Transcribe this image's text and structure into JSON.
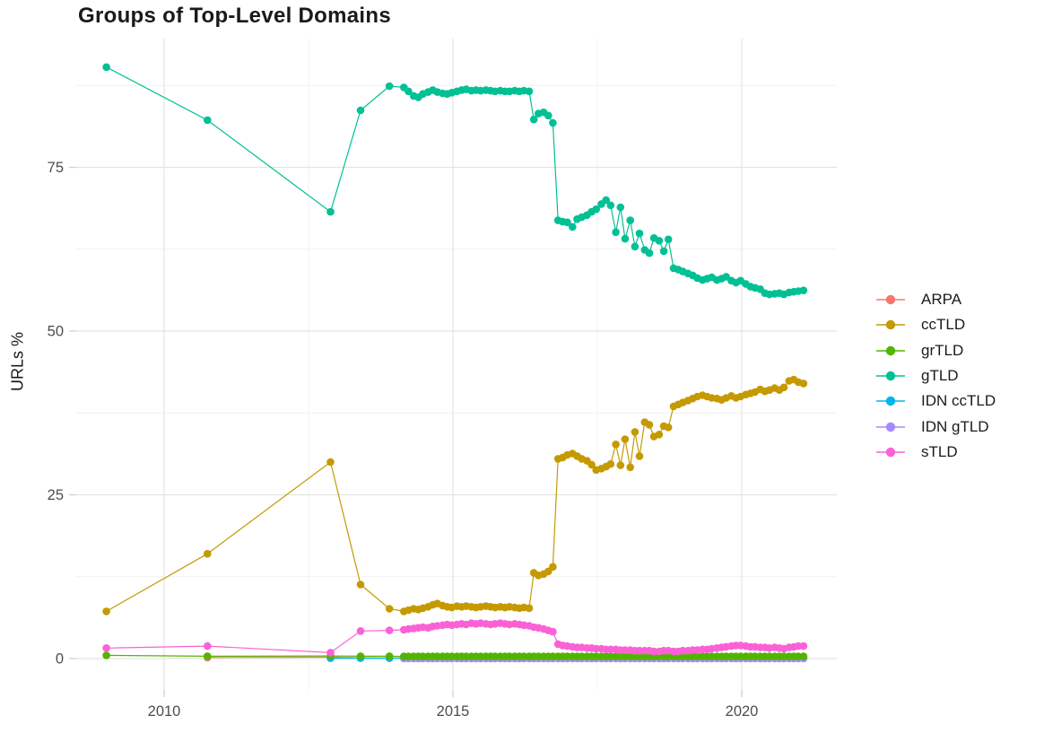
{
  "title": "Groups of Top-Level Domains",
  "chart_data": {
    "type": "line",
    "title": "Groups of Top-Level Domains",
    "xlabel": "",
    "ylabel": "URLs %",
    "grid": true,
    "legend_position": "right",
    "xlim": [
      2008.1,
      2021.65
    ],
    "ylim": [
      -4.8,
      94.7
    ],
    "x_ticks": [
      {
        "value": 2010,
        "label": "2010"
      },
      {
        "value": 2015,
        "label": "2015"
      },
      {
        "value": 2020,
        "label": "2020"
      }
    ],
    "y_ticks": [
      {
        "value": 0,
        "label": "0"
      },
      {
        "value": 25,
        "label": "25"
      },
      {
        "value": 50,
        "label": "50"
      },
      {
        "value": 75,
        "label": "75"
      }
    ],
    "x_minor_gridlines": [
      2012.5,
      2017.5
    ],
    "y_minor_gridlines": [
      12.5,
      37.5,
      62.5,
      87.5
    ],
    "draw_order": [
      "ARPA",
      "IDN ccTLD",
      "IDN gTLD",
      "ccTLD",
      "grTLD",
      "gTLD",
      "sTLD"
    ],
    "x": [
      2009.0,
      2010.75,
      2012.88,
      2013.4,
      2013.9,
      2014.15,
      2014.23,
      2014.32,
      2014.4,
      2014.48,
      2014.57,
      2014.65,
      2014.73,
      2014.82,
      2014.9,
      2014.98,
      2015.07,
      2015.15,
      2015.23,
      2015.32,
      2015.4,
      2015.48,
      2015.57,
      2015.65,
      2015.73,
      2015.82,
      2015.9,
      2015.98,
      2016.07,
      2016.15,
      2016.23,
      2016.32,
      2016.4,
      2016.48,
      2016.57,
      2016.65,
      2016.73,
      2016.82,
      2016.9,
      2016.98,
      2017.07,
      2017.15,
      2017.23,
      2017.32,
      2017.4,
      2017.48,
      2017.57,
      2017.65,
      2017.73,
      2017.82,
      2017.9,
      2017.98,
      2018.07,
      2018.15,
      2018.23,
      2018.32,
      2018.4,
      2018.48,
      2018.57,
      2018.65,
      2018.73,
      2018.82,
      2018.9,
      2018.98,
      2019.07,
      2019.15,
      2019.23,
      2019.32,
      2019.4,
      2019.48,
      2019.57,
      2019.65,
      2019.73,
      2019.82,
      2019.9,
      2019.98,
      2020.07,
      2020.15,
      2020.23,
      2020.32,
      2020.4,
      2020.48,
      2020.57,
      2020.65,
      2020.73,
      2020.82,
      2020.9,
      2020.98,
      2021.07
    ],
    "series": [
      {
        "name": "ARPA",
        "color": "#F8766D",
        "head": [
          null,
          0.15,
          0.2,
          0.12,
          0.1
        ],
        "fill": 0.08
      },
      {
        "name": "ccTLD",
        "color": "#C49A00",
        "values": [
          7.2,
          16.0,
          30.0,
          11.3,
          7.6,
          7.2,
          7.4,
          7.6,
          7.5,
          7.7,
          7.9,
          8.2,
          8.4,
          8.1,
          7.9,
          7.8,
          8.0,
          7.9,
          8.0,
          7.9,
          7.8,
          7.9,
          8.0,
          7.9,
          7.8,
          7.9,
          7.8,
          7.9,
          7.8,
          7.7,
          7.8,
          7.7,
          13.1,
          12.7,
          12.9,
          13.3,
          14.0,
          30.5,
          30.7,
          31.1,
          31.3,
          30.9,
          30.5,
          30.2,
          29.6,
          28.8,
          29.0,
          29.3,
          29.7,
          32.7,
          29.5,
          33.5,
          29.2,
          34.6,
          30.9,
          36.1,
          35.7,
          33.9,
          34.2,
          35.5,
          35.3,
          38.5,
          38.8,
          39.1,
          39.4,
          39.7,
          40.0,
          40.2,
          40.0,
          39.8,
          39.7,
          39.5,
          39.8,
          40.1,
          39.8,
          40.0,
          40.3,
          40.5,
          40.7,
          41.1,
          40.8,
          41.0,
          41.3,
          41.0,
          41.4,
          42.4,
          42.6,
          42.2,
          42.0
        ]
      },
      {
        "name": "grTLD",
        "color": "#53B400",
        "head": [
          0.5,
          0.35,
          0.4,
          0.35,
          0.35
        ],
        "fill": 0.33
      },
      {
        "name": "gTLD",
        "color": "#00C094",
        "values": [
          90.3,
          82.2,
          68.2,
          83.7,
          87.4,
          87.2,
          86.6,
          85.9,
          85.7,
          86.2,
          86.5,
          86.8,
          86.5,
          86.3,
          86.2,
          86.4,
          86.6,
          86.8,
          86.9,
          86.7,
          86.8,
          86.7,
          86.8,
          86.7,
          86.6,
          86.7,
          86.6,
          86.6,
          86.7,
          86.6,
          86.7,
          86.6,
          82.3,
          83.2,
          83.4,
          82.9,
          81.8,
          66.9,
          66.7,
          66.6,
          65.9,
          67.1,
          67.4,
          67.7,
          68.2,
          68.6,
          69.4,
          70.0,
          69.2,
          65.1,
          68.9,
          64.1,
          66.9,
          62.9,
          64.9,
          62.4,
          61.9,
          64.2,
          63.8,
          62.2,
          64.0,
          59.6,
          59.4,
          59.1,
          58.8,
          58.5,
          58.1,
          57.8,
          58.0,
          58.2,
          57.8,
          58.0,
          58.3,
          57.7,
          57.4,
          57.7,
          57.2,
          56.8,
          56.6,
          56.4,
          55.8,
          55.6,
          55.7,
          55.8,
          55.6,
          55.9,
          56.0,
          56.1,
          56.2
        ]
      },
      {
        "name": "IDN ccTLD",
        "color": "#00B6EB",
        "head": [
          null,
          null,
          0.05,
          0.05,
          0.05
        ],
        "fill": 0.05
      },
      {
        "name": "IDN gTLD",
        "color": "#A58AFF",
        "head": [
          null,
          null,
          null,
          null,
          null
        ],
        "fill": 0.02
      },
      {
        "name": "sTLD",
        "color": "#FB61D7",
        "values": [
          1.6,
          1.9,
          0.9,
          4.2,
          4.3,
          4.4,
          4.5,
          4.6,
          4.7,
          4.8,
          4.7,
          4.9,
          5.0,
          5.1,
          5.2,
          5.1,
          5.2,
          5.3,
          5.2,
          5.4,
          5.3,
          5.4,
          5.3,
          5.2,
          5.3,
          5.4,
          5.3,
          5.2,
          5.3,
          5.2,
          5.1,
          5.0,
          4.8,
          4.7,
          4.5,
          4.3,
          4.1,
          2.2,
          2.0,
          1.9,
          1.8,
          1.7,
          1.7,
          1.6,
          1.6,
          1.5,
          1.5,
          1.4,
          1.4,
          1.4,
          1.3,
          1.3,
          1.3,
          1.2,
          1.2,
          1.2,
          1.2,
          1.1,
          1.1,
          1.2,
          1.2,
          1.1,
          1.1,
          1.2,
          1.2,
          1.3,
          1.3,
          1.4,
          1.4,
          1.5,
          1.6,
          1.7,
          1.8,
          1.9,
          2.0,
          2.0,
          1.9,
          1.8,
          1.8,
          1.7,
          1.7,
          1.6,
          1.7,
          1.6,
          1.5,
          1.7,
          1.8,
          1.9,
          1.9
        ]
      }
    ],
    "style": {
      "major_gridline_color": "#e4e4e4",
      "minor_gridline_color": "#f1f1f1",
      "tick_mark_color": "#d4d4d4",
      "tick_label_color": "#4d4d4d",
      "point_radius": 4.3,
      "line_width": 1.2
    }
  }
}
